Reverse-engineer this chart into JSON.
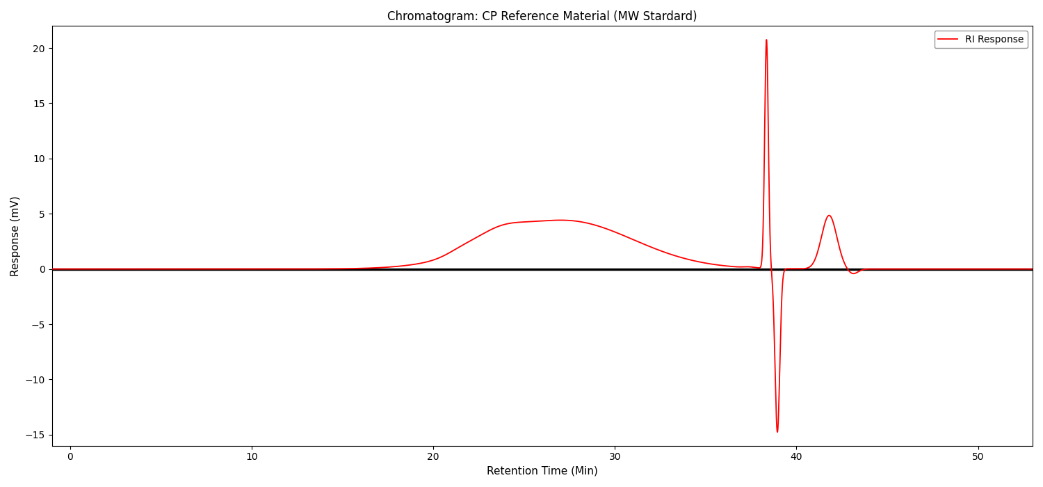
{
  "title": "Chromatogram: CP Reference Material (MW Stardard)",
  "xlabel": "Retention Time (Min)",
  "ylabel": "Response (mV)",
  "xlim": [
    -1,
    53
  ],
  "ylim": [
    -16,
    22
  ],
  "yticks": [
    -15,
    -10,
    -5,
    0,
    5,
    10,
    15,
    20
  ],
  "xticks": [
    0,
    10,
    20,
    30,
    40,
    50
  ],
  "legend_label": "RI Response",
  "line_color": "red",
  "baseline_color": "black",
  "baseline_lw": 2.5,
  "signal_lw": 1.3,
  "bg_color": "white",
  "figsize": [
    15,
    7
  ],
  "dpi": 100
}
